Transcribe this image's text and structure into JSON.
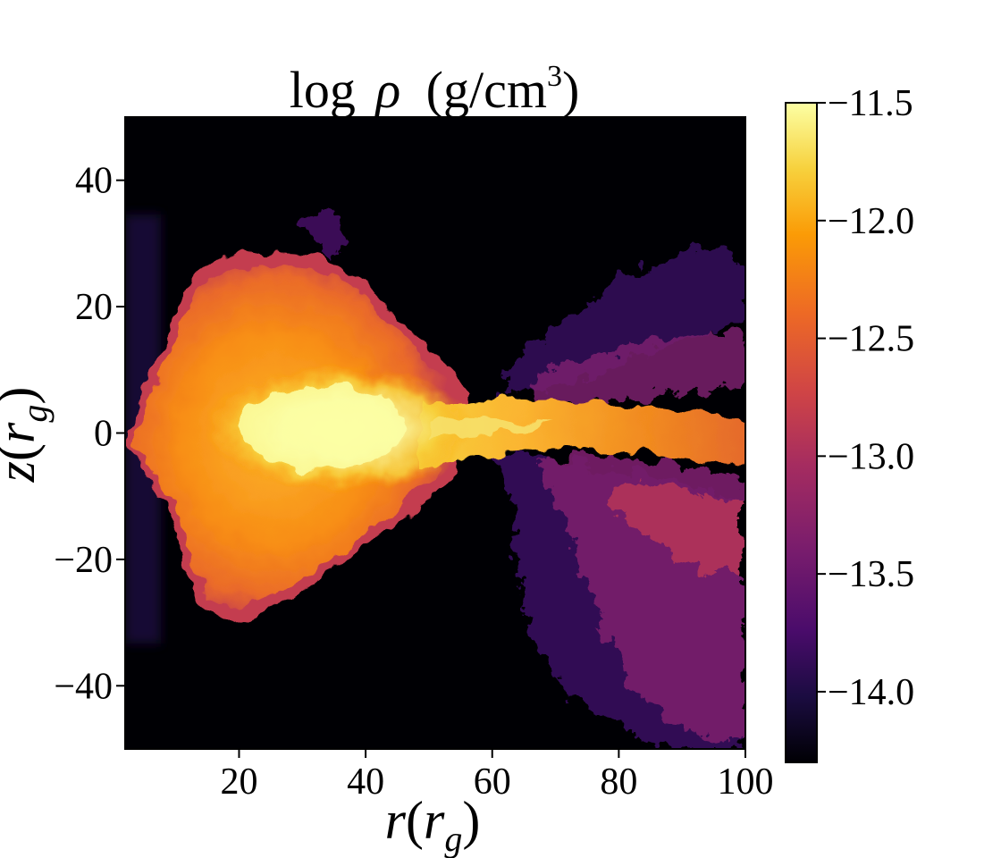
{
  "chart_data": {
    "type": "heatmap",
    "title": "log ρ (g/cm³)",
    "title_parts": {
      "prefix": "log",
      "symbol": "ρ",
      "unit_open": "(g/cm",
      "unit_exp": "3",
      "unit_close": ")"
    },
    "xlabel": "r(r_g)",
    "ylabel": "z(r_g)",
    "xlabel_parts": {
      "var": "r",
      "open": "(",
      "base": "r",
      "sub": "g",
      "close": ")"
    },
    "ylabel_parts": {
      "var": "z",
      "open": "(",
      "base": "r",
      "sub": "g",
      "close": ")"
    },
    "xlim": [
      2,
      100
    ],
    "ylim": [
      -50,
      50
    ],
    "xticks": [
      20,
      40,
      60,
      80,
      100
    ],
    "yticks": [
      40,
      20,
      0,
      -20,
      -40
    ],
    "xtick_labels": [
      "20",
      "40",
      "60",
      "80",
      "100"
    ],
    "ytick_labels": [
      "40",
      "20",
      "0",
      "−20",
      "−40"
    ],
    "colormap": "inferno",
    "colorbar": {
      "range": [
        -14.3,
        -11.5
      ],
      "ticks": [
        -11.5,
        -12.0,
        -12.5,
        -13.0,
        -13.5,
        -14.0
      ],
      "tick_labels": [
        "−11.5",
        "−12.0",
        "−12.5",
        "−13.0",
        "−13.5",
        "−14.0"
      ],
      "position": "right"
    },
    "grid": false,
    "features": {
      "disk_core": {
        "r": [
          25,
          50
        ],
        "z": [
          -8,
          8
        ],
        "value": -11.6
      },
      "outer_envelope": {
        "r": [
          3,
          55
        ],
        "z": [
          -30,
          28
        ],
        "value": -12.1
      },
      "plume_midplane": {
        "r": [
          50,
          100
        ],
        "z": [
          -5,
          8
        ],
        "value": -12.2
      },
      "lower_right_filaments": {
        "r": [
          58,
          100
        ],
        "z": [
          -50,
          -8
        ],
        "value": -13.0
      },
      "upper_right_filaments": {
        "r": [
          55,
          100
        ],
        "z": [
          5,
          35
        ],
        "value": -13.5
      },
      "background": {
        "value": -14.3
      }
    }
  },
  "colors": {
    "background": "#000004",
    "cmap_stops": [
      "#000004",
      "#1b0c41",
      "#4a0c6b",
      "#781c6d",
      "#a52c60",
      "#cf4446",
      "#ed6925",
      "#fb9b06",
      "#f7d13d",
      "#fcffa4"
    ]
  }
}
